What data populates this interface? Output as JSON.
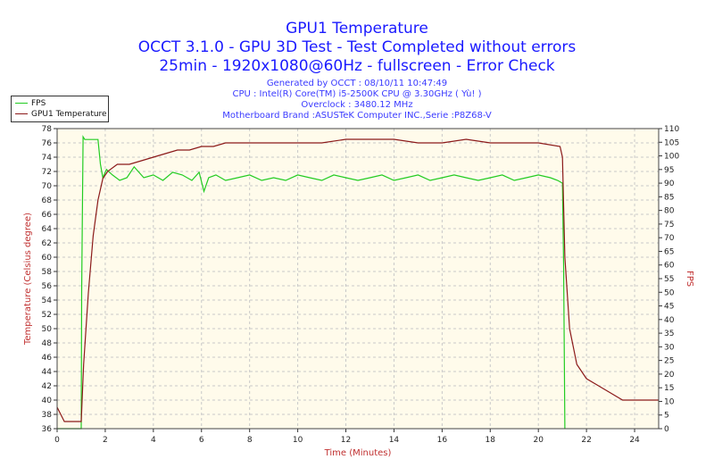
{
  "chart_data": {
    "type": "line",
    "title": "GPU1 Temperature",
    "subtitle": [
      "OCCT 3.1.0 - GPU 3D Test - Test Completed without errors",
      "25min - 1920x1080@60Hz - fullscreen - Error Check"
    ],
    "info": [
      "Generated by OCCT : 08/10/11 10:47:49",
      "CPU : Intel(R) Core(TM) i5-2500K CPU @ 3.30GHz ( Yù! )",
      "Overclock : 3480.12 MHz",
      "Motherboard Brand :ASUSTeK Computer INC.,Serie :P8Z68-V"
    ],
    "xlabel": "Time (Minutes)",
    "ylabel_left": "Temperature (Celsius degree)",
    "ylabel_right": "FPS",
    "xlim": [
      0,
      25
    ],
    "ylim_left": [
      36,
      78
    ],
    "ylim_right": [
      0,
      110
    ],
    "x_ticks": [
      "0",
      "2",
      "4",
      "6",
      "8",
      "10",
      "12",
      "14",
      "16",
      "18",
      "20",
      "22",
      "24"
    ],
    "y_left_ticks": [
      "36",
      "38",
      "40",
      "42",
      "44",
      "46",
      "48",
      "50",
      "52",
      "54",
      "56",
      "58",
      "60",
      "62",
      "64",
      "66",
      "68",
      "70",
      "72",
      "74",
      "76",
      "78"
    ],
    "y_right_ticks": [
      "0",
      "5",
      "10",
      "15",
      "20",
      "25",
      "30",
      "35",
      "40",
      "45",
      "50",
      "55",
      "60",
      "65",
      "70",
      "75",
      "80",
      "85",
      "90",
      "95",
      "100",
      "105",
      "110"
    ],
    "grid": true,
    "legend": "top-left",
    "series": [
      {
        "name": "FPS",
        "axis": "right",
        "color": "#22cc22",
        "x": [
          0,
          1.0,
          1.02,
          1.08,
          1.15,
          1.3,
          1.7,
          1.8,
          1.9,
          2.05,
          2.3,
          2.6,
          2.9,
          3.2,
          3.6,
          4.0,
          4.4,
          4.8,
          5.2,
          5.6,
          5.9,
          6.1,
          6.3,
          6.6,
          7.0,
          7.5,
          8.0,
          8.5,
          9.0,
          9.5,
          10.0,
          10.5,
          11.0,
          11.5,
          12.0,
          12.5,
          13.0,
          13.5,
          14.0,
          14.5,
          15.0,
          15.5,
          16.0,
          16.5,
          17.0,
          17.5,
          18.0,
          18.5,
          19.0,
          19.5,
          20.0,
          20.5,
          20.8,
          21.0,
          21.05,
          21.1
        ],
        "y": [
          0,
          0,
          50,
          107,
          106,
          106,
          106,
          97,
          92,
          95,
          93,
          91,
          92,
          96,
          92,
          93,
          91,
          94,
          93,
          91,
          94,
          87,
          92,
          93,
          91,
          92,
          93,
          91,
          92,
          91,
          93,
          92,
          91,
          93,
          92,
          91,
          92,
          93,
          91,
          92,
          93,
          91,
          92,
          93,
          92,
          91,
          92,
          93,
          91,
          92,
          93,
          92,
          91,
          90,
          60,
          0
        ]
      },
      {
        "name": "GPU1 Temperature",
        "axis": "left",
        "color": "#8b1a1a",
        "x": [
          0,
          0.3,
          1.0,
          1.1,
          1.3,
          1.5,
          1.7,
          1.9,
          2.1,
          2.5,
          3.0,
          3.5,
          4.0,
          4.5,
          5.0,
          5.5,
          6.0,
          6.5,
          7.0,
          8.0,
          9.0,
          10.0,
          11.0,
          12.0,
          13.0,
          14.0,
          15.0,
          16.0,
          17.0,
          18.0,
          19.0,
          20.0,
          20.9,
          21.0,
          21.1,
          21.3,
          21.6,
          22.0,
          22.5,
          23.0,
          23.5,
          25.0
        ],
        "y": [
          39,
          37,
          37,
          45,
          55,
          63,
          68,
          71,
          72,
          73,
          73,
          73.5,
          74,
          74.5,
          75,
          75,
          75.5,
          75.5,
          76,
          76,
          76,
          76,
          76,
          76.5,
          76.5,
          76.5,
          76,
          76,
          76.5,
          76,
          76,
          76,
          75.5,
          74,
          60,
          50,
          45,
          43,
          42,
          41,
          40,
          40
        ]
      }
    ]
  }
}
